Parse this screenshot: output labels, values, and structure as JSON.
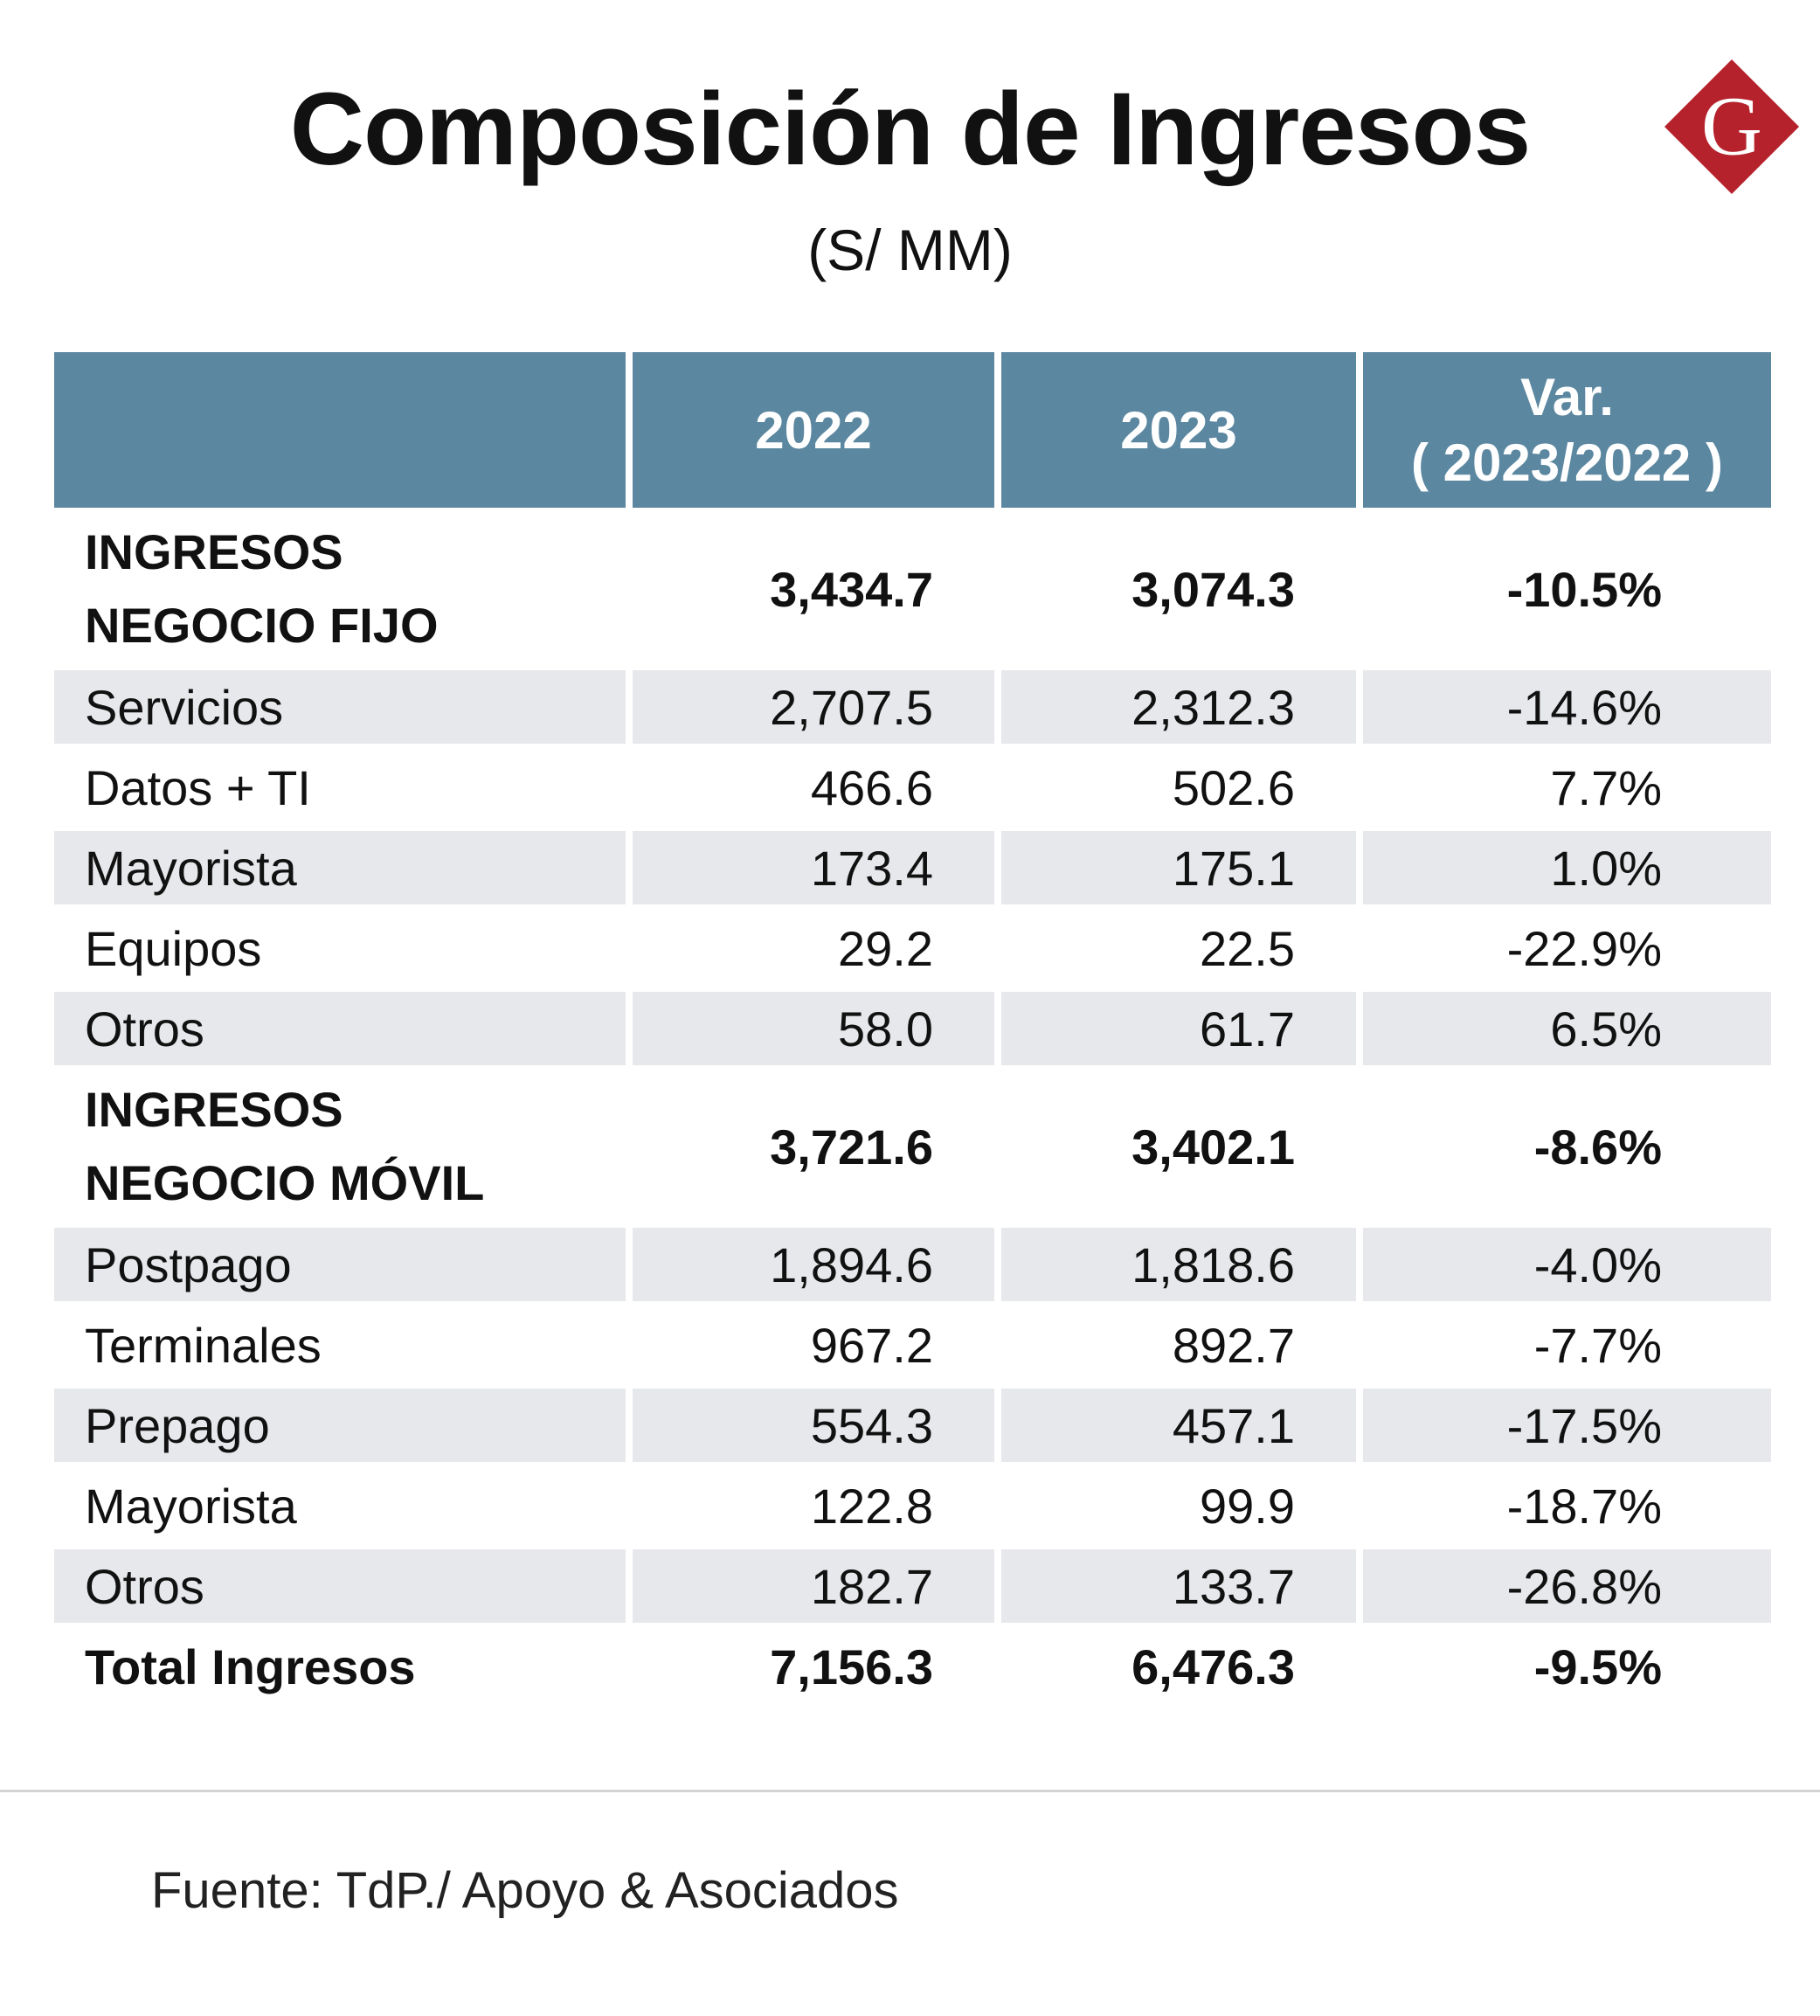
{
  "title": "Composición de Ingresos",
  "subtitle": "(S/ MM)",
  "logo": {
    "letter": "G",
    "icon": "gestion-logo-icon",
    "color": "#b5222c"
  },
  "colors": {
    "header": "#5b87a0",
    "shade": "#e6e8eb"
  },
  "header": {
    "col_2022": "2022",
    "col_2023": "2023",
    "var_line1": "Var.",
    "var_line2": "( 2023/2022 )"
  },
  "chart_data": {
    "type": "table",
    "title": "Composición de Ingresos",
    "subtitle": "(S/ MM)",
    "columns": [
      "",
      "2022",
      "2023",
      "Var. ( 2023/2022 )"
    ],
    "rows": [
      {
        "label": "INGRESOS NEGOCIO FIJO",
        "v2022": "3,434.7",
        "v2023": "3,074.3",
        "var": "-10.5%"
      },
      {
        "label": "Servicios",
        "v2022": "2,707.5",
        "v2023": "2,312.3",
        "var": "-14.6%"
      },
      {
        "label": "Datos + TI",
        "v2022": "466.6",
        "v2023": "502.6",
        "var": "7.7%"
      },
      {
        "label": "Mayorista",
        "v2022": "173.4",
        "v2023": "175.1",
        "var": "1.0%"
      },
      {
        "label": "Equipos",
        "v2022": "29.2",
        "v2023": "22.5",
        "var": "-22.9%"
      },
      {
        "label": "Otros",
        "v2022": "58.0",
        "v2023": "61.7",
        "var": "6.5%"
      },
      {
        "label": "INGRESOS NEGOCIO MÓVIL",
        "v2022": "3,721.6",
        "v2023": "3,402.1",
        "var": "-8.6%"
      },
      {
        "label": "Postpago",
        "v2022": "1,894.6",
        "v2023": "1,818.6",
        "var": "-4.0%"
      },
      {
        "label": "Terminales",
        "v2022": "967.2",
        "v2023": "892.7",
        "var": "-7.7%"
      },
      {
        "label": "Prepago",
        "v2022": "554.3",
        "v2023": "457.1",
        "var": "-17.5%"
      },
      {
        "label": "Mayorista",
        "v2022": "122.8",
        "v2023": "99.9",
        "var": "-18.7%"
      },
      {
        "label": "Otros",
        "v2022": "182.7",
        "v2023": "133.7",
        "var": "-26.8%"
      },
      {
        "label": "Total Ingresos",
        "v2022": "7,156.3",
        "v2023": "6,476.3",
        "var": "-9.5%"
      }
    ]
  },
  "groups": {
    "fijo": {
      "line1": "INGRESOS",
      "line2": "NEGOCIO FIJO"
    },
    "movil": {
      "line1": "INGRESOS",
      "line2": "NEGOCIO MÓVIL"
    }
  },
  "source": "Fuente: TdP./ Apoyo & Asociados"
}
